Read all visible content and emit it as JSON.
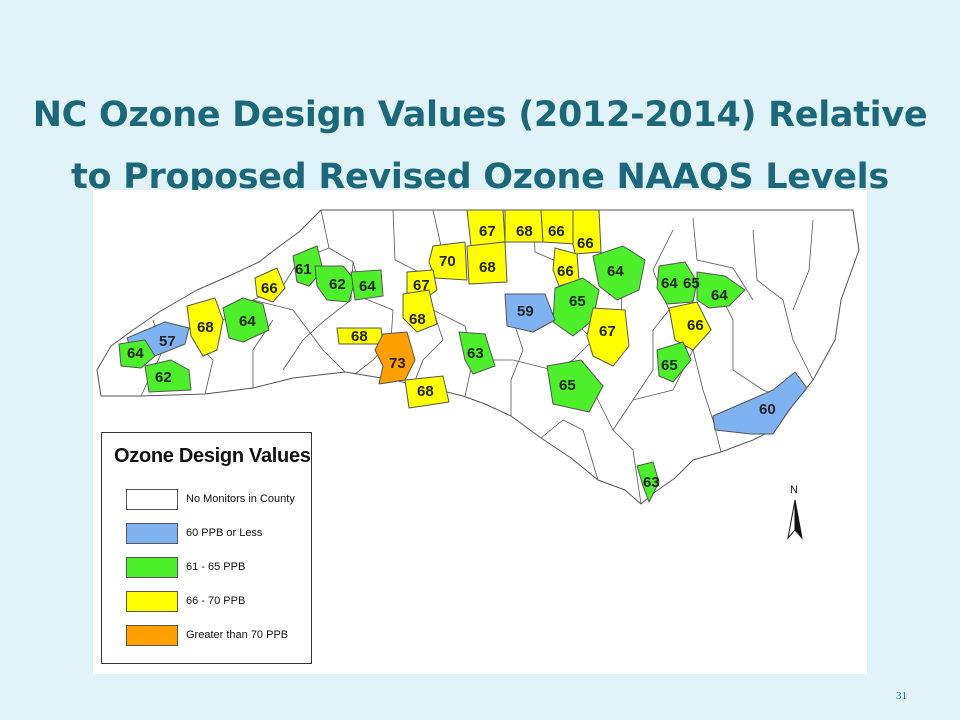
{
  "title_line1": "NC Ozone Design Values (2012-2014) Relative",
  "title_line2": "to Proposed Revised Ozone NAAQS Levels",
  "page_number": "31",
  "legend": {
    "title": "Ozone Design Values",
    "items": [
      {
        "label": "No Monitors in County",
        "color": "#ffffff"
      },
      {
        "label": "60 PPB or Less",
        "color": "#7fb2f0"
      },
      {
        "label": "61 - 65 PPB",
        "color": "#4cef2a"
      },
      {
        "label": "66 - 70 PPB",
        "color": "#ffff00"
      },
      {
        "label": "Greater than 70 PPB",
        "color": "#ff9f00"
      }
    ]
  },
  "north_label": "N",
  "monitor_values": [
    "67",
    "68",
    "66",
    "66",
    "70",
    "68",
    "66",
    "64",
    "61",
    "62",
    "64",
    "66",
    "67",
    "65",
    "64",
    "65",
    "59",
    "64",
    "68",
    "68",
    "64",
    "68",
    "67",
    "66",
    "57",
    "64",
    "73",
    "63",
    "65",
    "62",
    "68",
    "65",
    "60",
    "63"
  ]
}
